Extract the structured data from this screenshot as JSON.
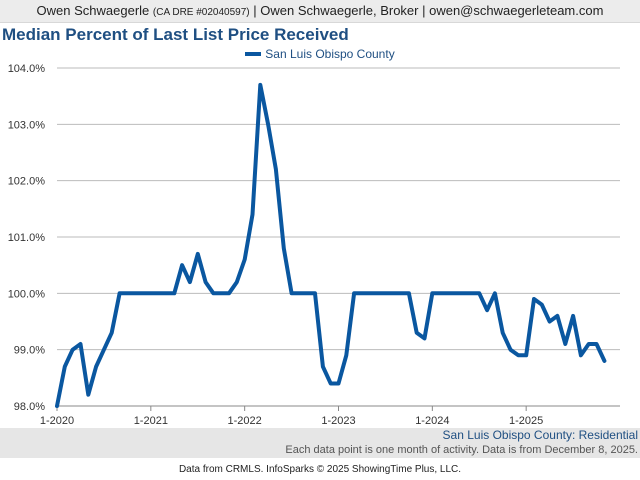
{
  "header": {
    "name": "Owen Schwaegerle",
    "license": "(CA DRE #02040597)",
    "rest": "| Owen Schwaegerle, Broker | owen@schwaegerleteam.com"
  },
  "colors": {
    "series": "#0a57a0",
    "title": "#1f4f82",
    "grid": "#bbbbbb"
  },
  "chart_data": {
    "type": "line",
    "title": "Median Percent of Last List Price Received",
    "legend": [
      "San Luis Obispo County"
    ],
    "legend_position": "top-center",
    "xlabel": "",
    "ylabel": "",
    "ylim": [
      98.0,
      104.0
    ],
    "yticks": [
      "98.0%",
      "99.0%",
      "100.0%",
      "101.0%",
      "102.0%",
      "103.0%",
      "104.0%"
    ],
    "xticks": [
      {
        "month_index": 0,
        "label": "1-2020"
      },
      {
        "month_index": 12,
        "label": "1-2021"
      },
      {
        "month_index": 24,
        "label": "1-2022"
      },
      {
        "month_index": 36,
        "label": "1-2023"
      },
      {
        "month_index": 48,
        "label": "1-2024"
      },
      {
        "month_index": 60,
        "label": "1-2025"
      }
    ],
    "grid": true,
    "series": [
      {
        "name": "San Luis Obispo County",
        "start": "1-2020",
        "values": [
          98.0,
          98.7,
          99.0,
          99.1,
          98.2,
          98.7,
          99.0,
          99.3,
          100.0,
          100.0,
          100.0,
          100.0,
          100.0,
          100.0,
          100.0,
          100.0,
          100.5,
          100.2,
          100.7,
          100.2,
          100.0,
          100.0,
          100.0,
          100.2,
          100.6,
          101.4,
          103.7,
          103.0,
          102.2,
          100.8,
          100.0,
          100.0,
          100.0,
          100.0,
          98.7,
          98.4,
          98.4,
          98.9,
          100.0,
          100.0,
          100.0,
          100.0,
          100.0,
          100.0,
          100.0,
          100.0,
          99.3,
          99.2,
          100.0,
          100.0,
          100.0,
          100.0,
          100.0,
          100.0,
          100.0,
          99.7,
          100.0,
          99.3,
          99.0,
          98.9,
          98.9,
          99.9,
          99.8,
          99.5,
          99.6,
          99.1,
          99.6,
          98.9,
          99.1,
          99.1,
          98.8
        ]
      }
    ]
  },
  "footer": {
    "series_label": "San Luis Obispo County: Residential",
    "note": "Each data point is one month of activity. Data is from December 8, 2025.",
    "source": "Data from CRMLS. InfoSparks © 2025 ShowingTime Plus, LLC."
  }
}
